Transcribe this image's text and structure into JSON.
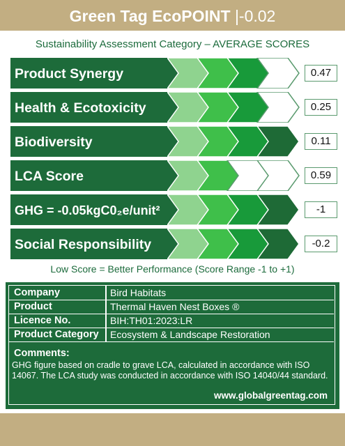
{
  "header": {
    "title": "Green Tag EcoPOINT",
    "code": "|-0.02"
  },
  "subtitle": "Sustainability Assessment Category – AVERAGE SCORES",
  "colors": {
    "band": "#c2ae82",
    "dark_green": "#1d6b3a",
    "c1": "#8fd38f",
    "c2": "#3fbf4a",
    "c3": "#189a3a",
    "c4": "#1e6a36"
  },
  "rows": [
    {
      "label": "Product Synergy",
      "score": "0.47",
      "fills": [
        "c1",
        "c2",
        "c3",
        "empty"
      ]
    },
    {
      "label": "Health & Ecotoxicity",
      "score": "0.25",
      "fills": [
        "c1",
        "c2",
        "c3",
        "empty"
      ]
    },
    {
      "label": "Biodiversity",
      "score": "0.11",
      "fills": [
        "c1",
        "c2",
        "c3",
        "c4"
      ]
    },
    {
      "label": "LCA Score",
      "score": "0.59",
      "fills": [
        "c1",
        "c2",
        "empty",
        "empty"
      ]
    },
    {
      "label": "GHG = -0.05kgC0₂e/unit²",
      "score": "-1",
      "fills": [
        "c1",
        "c2",
        "c3",
        "c4"
      ]
    },
    {
      "label": "Social Responsibility",
      "score": "-0.2",
      "fills": [
        "c1",
        "c2",
        "c3",
        "c4"
      ]
    }
  ],
  "note": "Low Score = Better Performance (Score Range -1 to +1)",
  "info": {
    "company_label": "Company",
    "company_value": "Bird Habitats",
    "product_label": "Product",
    "product_value": "Thermal Haven Nest Boxes ®",
    "licence_label": "Licence No.",
    "licence_value": "BIH:TH01:2023:LR",
    "category_label": "Product Category",
    "category_value": "Ecosystem & Landscape Restoration",
    "comments_label": "Comments:",
    "comments_text": "GHG figure based on cradle to grave LCA, calculated in accordance with ISO 14067. The LCA study was conducted in accordance with ISO 14040/44 standard.",
    "website": "www.globalgreentag.com"
  }
}
